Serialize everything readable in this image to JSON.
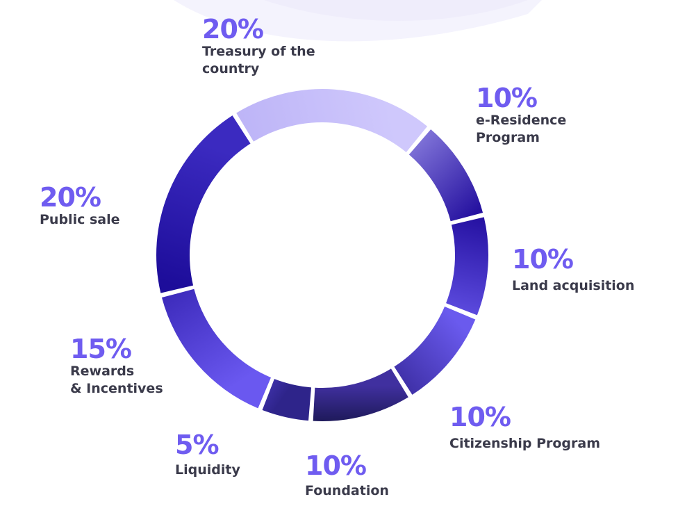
{
  "colors": {
    "accent": "#6f5cf0",
    "label_text": "#3a3a4a",
    "segment_light": "#c9c1fb",
    "segment_dark": "#2a1fa0",
    "segment_deep": "#231b66"
  },
  "chart_data": {
    "type": "pie",
    "style": "donut",
    "title": "",
    "slices": [
      {
        "label": "Treasury of the\ncountry",
        "value": 20,
        "display": "20%"
      },
      {
        "label": "e-Residence\nProgram",
        "value": 10,
        "display": "10%"
      },
      {
        "label": "Land acquisition",
        "value": 10,
        "display": "10%"
      },
      {
        "label": "Citizenship Program",
        "value": 10,
        "display": "10%"
      },
      {
        "label": "Foundation",
        "value": 10,
        "display": "10%"
      },
      {
        "label": "Liquidity",
        "value": 5,
        "display": "5%"
      },
      {
        "label": "Rewards\n& Incentives",
        "value": 15,
        "display": "15%"
      },
      {
        "label": "Public sale",
        "value": 20,
        "display": "20%"
      }
    ]
  }
}
